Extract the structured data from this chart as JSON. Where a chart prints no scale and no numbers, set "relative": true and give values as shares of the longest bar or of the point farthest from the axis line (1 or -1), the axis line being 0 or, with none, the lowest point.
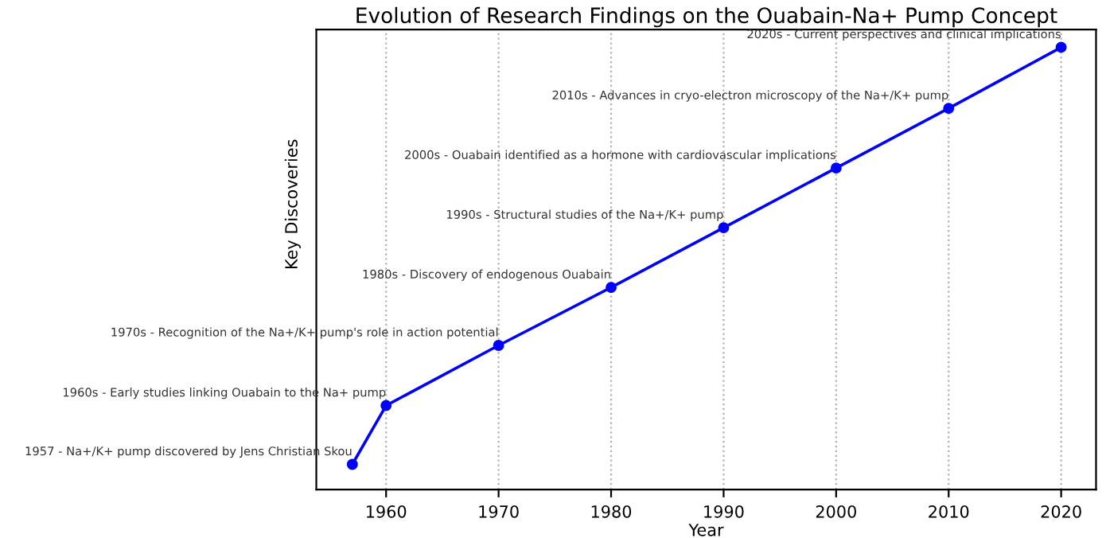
{
  "chart_data": {
    "type": "line",
    "title": "Evolution of Research Findings on the Ouabain-Na+ Pump Concept",
    "xlabel": "Year",
    "ylabel": "Key Discoveries",
    "x": [
      1957,
      1960,
      1970,
      1980,
      1990,
      2000,
      2010,
      2020
    ],
    "series": [
      {
        "color": "#0000ff",
        "values": [
          0.057,
          0.19,
          0.326,
          0.457,
          0.592,
          0.727,
          0.862,
          1.0
        ]
      }
    ],
    "relative": true,
    "xlim": [
      1953.8,
      2023.1
    ],
    "xticks": [
      1960,
      1970,
      1980,
      1990,
      2000,
      2010,
      2020
    ],
    "grid": "x",
    "marker": "circle",
    "line_style": "solid",
    "tick_labels": "x",
    "annotations": [
      {
        "text": "1957 - Na+/K+ pump discovered by Jens Christian Skou",
        "x": 1957,
        "y": 0.057
      },
      {
        "text": "1960s - Early studies linking Ouabain to the Na+ pump",
        "x": 1960,
        "y": 0.19
      },
      {
        "text": "1970s - Recognition of the Na+/K+ pump's role in action potential",
        "x": 1970,
        "y": 0.326
      },
      {
        "text": "1980s - Discovery of endogenous Ouabain",
        "x": 1980,
        "y": 0.457
      },
      {
        "text": "1990s - Structural studies of the Na+/K+ pump",
        "x": 1990,
        "y": 0.592
      },
      {
        "text": "2000s - Ouabain identified as a hormone with cardiovascular implications",
        "x": 2000,
        "y": 0.727
      },
      {
        "text": "2010s - Advances in cryo-electron microscopy of the Na+/K+ pump",
        "x": 2010,
        "y": 0.862
      },
      {
        "text": "2020s - Current perspectives and clinical implications",
        "x": 2020,
        "y": 1.0
      }
    ]
  }
}
